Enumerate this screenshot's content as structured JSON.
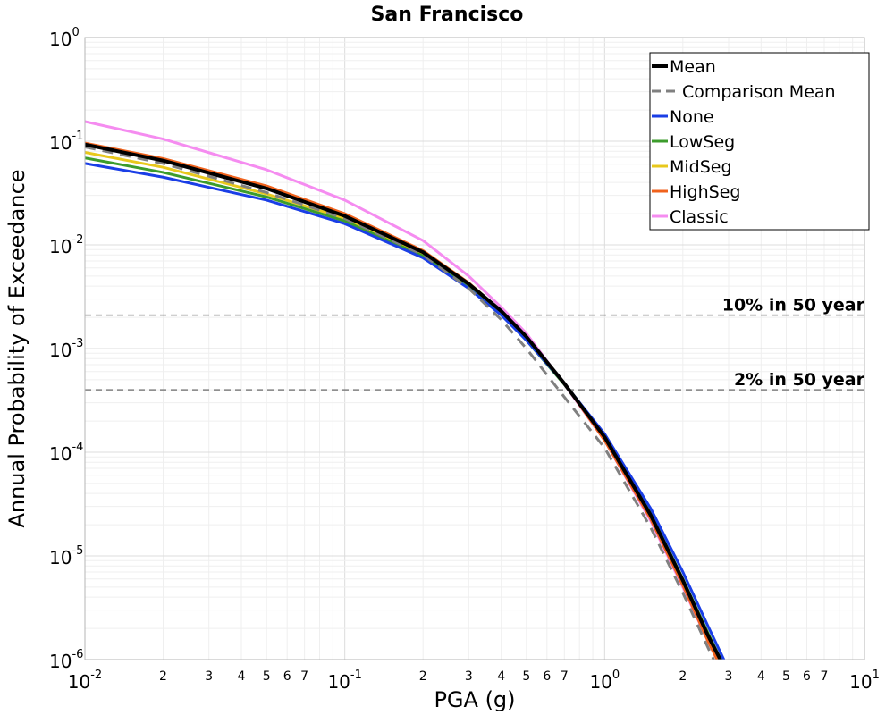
{
  "chart_data": {
    "type": "line",
    "title": "San Francisco",
    "xlabel": "PGA (g)",
    "ylabel": "Annual Probability of Exceedance",
    "xscale": "log",
    "yscale": "log",
    "xlim": [
      0.01,
      10
    ],
    "ylim": [
      1e-06,
      1
    ],
    "grid": true,
    "legend_position": "top-right",
    "x_major_ticks": [
      {
        "value": 0.01,
        "base": "10",
        "exp": "-2"
      },
      {
        "value": 0.1,
        "base": "10",
        "exp": "-1"
      },
      {
        "value": 1,
        "base": "10",
        "exp": "0"
      },
      {
        "value": 10,
        "base": "10",
        "exp": "1"
      }
    ],
    "x_minor_labels": [
      {
        "value": 0.02,
        "label": "2"
      },
      {
        "value": 0.03,
        "label": "3"
      },
      {
        "value": 0.04,
        "label": "4"
      },
      {
        "value": 0.05,
        "label": "5"
      },
      {
        "value": 0.06,
        "label": "6"
      },
      {
        "value": 0.07,
        "label": "7"
      },
      {
        "value": 0.2,
        "label": "2"
      },
      {
        "value": 0.3,
        "label": "3"
      },
      {
        "value": 0.4,
        "label": "4"
      },
      {
        "value": 0.5,
        "label": "5"
      },
      {
        "value": 0.6,
        "label": "6"
      },
      {
        "value": 0.7,
        "label": "7"
      },
      {
        "value": 2,
        "label": "2"
      },
      {
        "value": 3,
        "label": "3"
      },
      {
        "value": 4,
        "label": "4"
      },
      {
        "value": 5,
        "label": "5"
      },
      {
        "value": 6,
        "label": "6"
      },
      {
        "value": 7,
        "label": "7"
      }
    ],
    "y_major_ticks": [
      {
        "value": 1,
        "base": "10",
        "exp": "0"
      },
      {
        "value": 0.1,
        "base": "10",
        "exp": "-1"
      },
      {
        "value": 0.01,
        "base": "10",
        "exp": "-2"
      },
      {
        "value": 0.001,
        "base": "10",
        "exp": "-3"
      },
      {
        "value": 0.0001,
        "base": "10",
        "exp": "-4"
      },
      {
        "value": 1e-05,
        "base": "10",
        "exp": "-5"
      },
      {
        "value": 1e-06,
        "base": "10",
        "exp": "-6"
      }
    ],
    "reference_lines": [
      {
        "label": "10% in 50 year",
        "y": 0.0021,
        "color": "#808080"
      },
      {
        "label": "2% in 50 year",
        "y": 0.0004,
        "color": "#808080"
      }
    ],
    "series": [
      {
        "name": "Mean",
        "color": "#000000",
        "width": 4,
        "dash": "",
        "x": [
          0.01,
          0.02,
          0.05,
          0.1,
          0.2,
          0.3,
          0.4,
          0.5,
          0.7,
          1.0,
          1.5,
          2.0,
          2.5,
          3.0
        ],
        "y": [
          0.093,
          0.065,
          0.035,
          0.019,
          0.0085,
          0.0042,
          0.0023,
          0.0013,
          0.00046,
          0.00014,
          2.5e-05,
          5.8e-06,
          1.7e-06,
          7e-07
        ]
      },
      {
        "name": "Comparison Mean",
        "color": "#808080",
        "width": 3,
        "dash": "12,8",
        "x": [
          0.01,
          0.02,
          0.05,
          0.1,
          0.2,
          0.3,
          0.4,
          0.5,
          0.7,
          1.0,
          1.5,
          2.0,
          2.5,
          3.0
        ],
        "y": [
          0.088,
          0.061,
          0.032,
          0.018,
          0.008,
          0.0038,
          0.0019,
          0.001,
          0.00034,
          0.00011,
          1.9e-05,
          4.4e-06,
          1.3e-06,
          5e-07
        ]
      },
      {
        "name": "None",
        "color": "#1a3ee6",
        "width": 3,
        "dash": "",
        "x": [
          0.01,
          0.02,
          0.05,
          0.1,
          0.2,
          0.3,
          0.4,
          0.5,
          0.7,
          1.0,
          1.5,
          2.0,
          2.5,
          3.0
        ],
        "y": [
          0.061,
          0.045,
          0.027,
          0.016,
          0.0075,
          0.0038,
          0.0021,
          0.0012,
          0.00046,
          0.00015,
          2.9e-05,
          7e-06,
          2.1e-06,
          8e-07
        ]
      },
      {
        "name": "LowSeg",
        "color": "#3c9c2c",
        "width": 3,
        "dash": "",
        "x": [
          0.01,
          0.02,
          0.05,
          0.1,
          0.2,
          0.3,
          0.4,
          0.5,
          0.7,
          1.0,
          1.5,
          2.0,
          2.5,
          3.0
        ],
        "y": [
          0.069,
          0.05,
          0.029,
          0.017,
          0.0078,
          0.0039,
          0.0022,
          0.0012,
          0.00045,
          0.00014,
          2.6e-05,
          6e-06,
          1.8e-06,
          7e-07
        ]
      },
      {
        "name": "MidSeg",
        "color": "#e8c81c",
        "width": 3,
        "dash": "",
        "x": [
          0.01,
          0.02,
          0.05,
          0.1,
          0.2,
          0.3,
          0.4,
          0.5,
          0.7,
          1.0,
          1.5,
          2.0,
          2.5,
          3.0
        ],
        "y": [
          0.078,
          0.056,
          0.031,
          0.018,
          0.0081,
          0.004,
          0.0022,
          0.0013,
          0.00046,
          0.00014,
          2.5e-05,
          5.7e-06,
          1.7e-06,
          7e-07
        ]
      },
      {
        "name": "HighSeg",
        "color": "#f0621c",
        "width": 3,
        "dash": "",
        "x": [
          0.01,
          0.02,
          0.05,
          0.1,
          0.2,
          0.3,
          0.4,
          0.5,
          0.7,
          1.0,
          1.5,
          2.0,
          2.5,
          3.0
        ],
        "y": [
          0.096,
          0.068,
          0.037,
          0.02,
          0.0088,
          0.0043,
          0.0023,
          0.0013,
          0.00046,
          0.00013,
          2.3e-05,
          5.2e-06,
          1.5e-06,
          6e-07
        ]
      },
      {
        "name": "Classic",
        "color": "#f58cf0",
        "width": 3,
        "dash": "",
        "x": [
          0.01,
          0.02,
          0.05,
          0.1,
          0.2,
          0.3,
          0.4,
          0.5,
          0.7,
          1.0,
          1.5,
          2.0,
          2.5,
          3.0
        ],
        "y": [
          0.155,
          0.105,
          0.053,
          0.027,
          0.011,
          0.005,
          0.0025,
          0.0014,
          0.00045,
          0.00013,
          2.2e-05,
          5e-06,
          1.5e-06,
          6e-07
        ]
      }
    ]
  }
}
